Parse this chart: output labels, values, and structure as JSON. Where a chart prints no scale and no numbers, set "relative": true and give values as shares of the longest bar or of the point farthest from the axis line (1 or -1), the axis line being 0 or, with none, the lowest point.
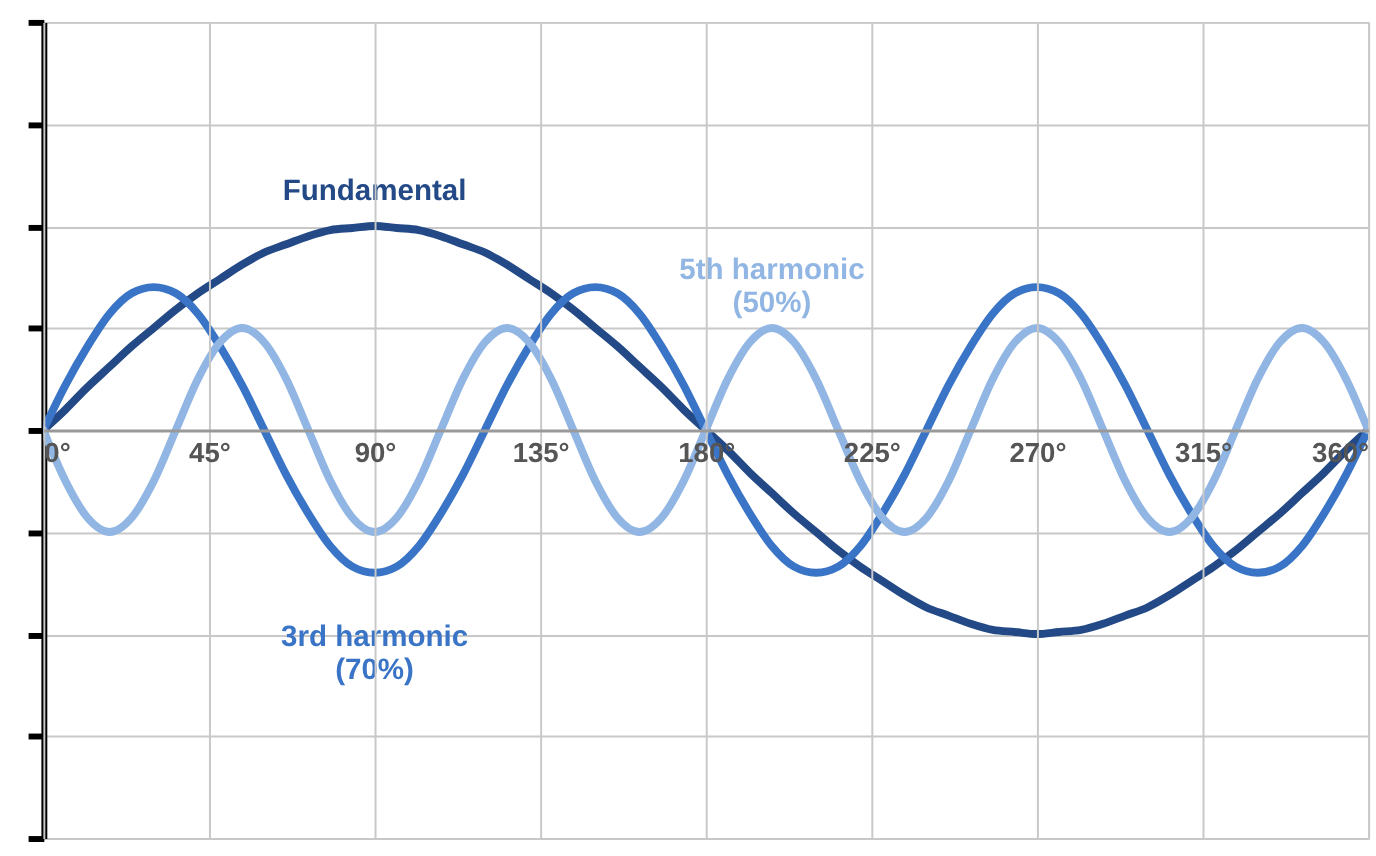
{
  "chart_data": {
    "type": "line",
    "relative": true,
    "grid": true,
    "legend": false,
    "tick_labels": "x",
    "marker": "none",
    "line_style": "solid",
    "x": [
      0,
      6,
      12,
      18,
      24,
      30,
      36,
      42,
      48,
      54,
      60,
      66,
      72,
      78,
      84,
      90,
      96,
      102,
      108,
      114,
      120,
      126,
      132,
      138,
      144,
      150,
      156,
      162,
      168,
      174,
      180,
      186,
      192,
      198,
      204,
      210,
      216,
      222,
      228,
      234,
      240,
      246,
      252,
      258,
      264,
      270,
      276,
      282,
      288,
      294,
      300,
      306,
      312,
      318,
      324,
      330,
      336,
      342,
      348,
      354,
      360
    ],
    "xlim": [
      0,
      360
    ],
    "xticks": [
      {
        "value": 0,
        "label": "0°"
      },
      {
        "value": 45,
        "label": "45°"
      },
      {
        "value": 90,
        "label": "90°"
      },
      {
        "value": 135,
        "label": "135°"
      },
      {
        "value": 180,
        "label": "180°"
      },
      {
        "value": 225,
        "label": "225°"
      },
      {
        "value": 270,
        "label": "270°"
      },
      {
        "value": 315,
        "label": "315°"
      },
      {
        "value": 360,
        "label": "360°"
      }
    ],
    "series": [
      {
        "name": "Fundamental",
        "color": "#234a87",
        "values": [
          0,
          0.1,
          0.21,
          0.31,
          0.41,
          0.5,
          0.59,
          0.67,
          0.74,
          0.81,
          0.87,
          0.91,
          0.95,
          0.98,
          0.99,
          1,
          0.99,
          0.98,
          0.95,
          0.91,
          0.87,
          0.81,
          0.74,
          0.67,
          0.59,
          0.5,
          0.41,
          0.31,
          0.21,
          0.1,
          0,
          -0.1,
          -0.21,
          -0.31,
          -0.41,
          -0.5,
          -0.59,
          -0.67,
          -0.74,
          -0.81,
          -0.87,
          -0.91,
          -0.95,
          -0.98,
          -0.99,
          -1,
          -0.99,
          -0.98,
          -0.95,
          -0.91,
          -0.87,
          -0.81,
          -0.74,
          -0.67,
          -0.59,
          -0.5,
          -0.41,
          -0.31,
          -0.21,
          -0.1,
          0
        ]
      },
      {
        "name": "3rd harmonic\n(70%)",
        "color": "#3a74c6",
        "values": [
          0,
          0.22,
          0.41,
          0.57,
          0.67,
          0.7,
          0.67,
          0.57,
          0.41,
          0.22,
          0,
          -0.22,
          -0.41,
          -0.57,
          -0.67,
          -0.7,
          -0.67,
          -0.57,
          -0.41,
          -0.22,
          0,
          0.22,
          0.41,
          0.57,
          0.67,
          0.7,
          0.67,
          0.57,
          0.41,
          0.22,
          0,
          -0.22,
          -0.41,
          -0.57,
          -0.67,
          -0.7,
          -0.67,
          -0.57,
          -0.41,
          -0.22,
          0,
          0.22,
          0.41,
          0.57,
          0.67,
          0.7,
          0.67,
          0.57,
          0.41,
          0.22,
          0,
          -0.22,
          -0.41,
          -0.57,
          -0.67,
          -0.7,
          -0.67,
          -0.57,
          -0.41,
          -0.22,
          0
        ]
      },
      {
        "name": "5th harmonic\n(50%)",
        "color": "#92b6e4",
        "values": [
          0,
          -0.25,
          -0.43,
          -0.5,
          -0.43,
          -0.25,
          0,
          0.25,
          0.43,
          0.5,
          0.43,
          0.25,
          0,
          -0.25,
          -0.43,
          -0.5,
          -0.43,
          -0.25,
          0,
          0.25,
          0.43,
          0.5,
          0.43,
          0.25,
          0,
          -0.25,
          -0.43,
          -0.5,
          -0.43,
          -0.25,
          0,
          0.25,
          0.43,
          0.5,
          0.43,
          0.25,
          0,
          -0.25,
          -0.43,
          -0.5,
          -0.43,
          -0.25,
          0,
          0.25,
          0.43,
          0.5,
          0.43,
          0.25,
          0,
          -0.25,
          -0.43,
          -0.5,
          -0.43,
          -0.25,
          0,
          0.25,
          0.43,
          0.5,
          0.43,
          0.25,
          0
        ]
      }
    ]
  }
}
